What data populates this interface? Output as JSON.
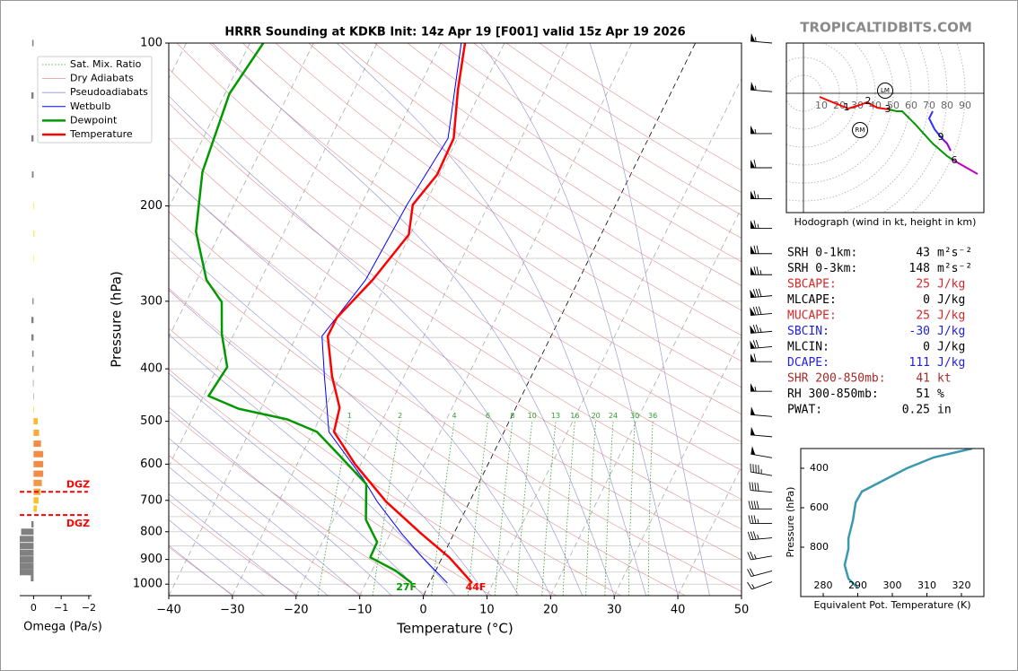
{
  "header": {
    "watermark": "TROPICALTIDBITS.COM"
  },
  "chart_data": [
    {
      "type": "skewt",
      "title": "HRRR Sounding at KDKB Init: 14z Apr 19 [F001] valid 15z Apr 19 2026",
      "x_label": "Temperature (°C)",
      "y_label": "Pressure (hPa)",
      "y_scale": "log",
      "xlim": [
        -40,
        50
      ],
      "ylim": [
        1050,
        100
      ],
      "xticks": [
        {
          "value": -40,
          "label": "−40"
        },
        {
          "value": -30,
          "label": "−30"
        },
        {
          "value": -20,
          "label": "−20"
        },
        {
          "value": -10,
          "label": "−10"
        },
        0,
        10,
        20,
        30,
        40,
        50
      ],
      "yticks": [
        100,
        200,
        300,
        400,
        500,
        600,
        700,
        800,
        900,
        1000
      ],
      "yminor": [
        150,
        250,
        350,
        450,
        550,
        650,
        750,
        850,
        950
      ],
      "grid": true,
      "legend": "upper left",
      "background_lines": [
        {
          "name": "Sat. Mix. Ratio",
          "color": "#2ca02c",
          "style": "dotted"
        },
        {
          "name": "Dry Adiabats",
          "color": "#e39090",
          "style": "solid"
        },
        {
          "name": "Pseudoadiabats",
          "color": "#8f8fd0",
          "style": "solid"
        }
      ],
      "mixing_ratios": [
        1,
        2,
        4,
        6,
        8,
        10,
        13,
        16,
        20,
        24,
        30,
        36
      ],
      "series": [
        {
          "name": "Wetbulb",
          "color": "#0000ff",
          "width": 1,
          "pressures": [
            995,
            892,
            808,
            704,
            640,
            523,
            413,
            348,
            274,
            199,
            150,
            100
          ],
          "values": [
            2.8,
            -3.1,
            -8.1,
            -14.5,
            -18.4,
            -27.5,
            -32.5,
            -36,
            -33.5,
            -32.8,
            -31.5,
            -36.8
          ]
        },
        {
          "name": "Dewpoint",
          "color": "#009900",
          "width": 2.5,
          "pressures": [
            995,
            944,
            892,
            836,
            760,
            653,
            571,
            523,
            496,
            474,
            449,
            397,
            345,
            301,
            274,
            223,
            173,
            124,
            100
          ],
          "values": [
            -2.8,
            -6.3,
            -11.3,
            -11.4,
            -14.9,
            -17.6,
            -24.7,
            -29.4,
            -35,
            -43.5,
            -49.2,
            -48.5,
            -51.9,
            -54.4,
            -58.5,
            -63.9,
            -67.5,
            -69.3,
            -67.9
          ]
        },
        {
          "name": "Temperature",
          "color": "#ff0000",
          "width": 2.5,
          "pressures": [
            995,
            940,
            892,
            808,
            704,
            600,
            523,
            472,
            413,
            348,
            322,
            274,
            226,
            199,
            175,
            150,
            122,
            100
          ],
          "values": [
            6.7,
            3.8,
            1.1,
            -5,
            -13.1,
            -20.9,
            -26.7,
            -27.7,
            -31.3,
            -35.1,
            -35.1,
            -32.4,
            -30.2,
            -31.9,
            -30.4,
            -30.6,
            -33.7,
            -36.2
          ]
        }
      ],
      "annotations": [
        {
          "text": "27F",
          "color": "#009900"
        },
        {
          "text": "44F",
          "color": "#ff0000"
        }
      ],
      "winds": {
        "pressures": [
          100,
          123,
          147,
          170,
          194,
          220,
          245,
          268,
          293,
          316,
          341,
          364,
          388,
          440,
          490,
          534,
          584,
          630,
          676,
          726,
          772,
          821,
          887,
          945,
          990
        ],
        "speeds": [
          55,
          55,
          55,
          60,
          65,
          65,
          70,
          75,
          80,
          80,
          75,
          70,
          60,
          55,
          50,
          50,
          50,
          45,
          40,
          40,
          35,
          35,
          25,
          20,
          15
        ],
        "directions": [
          275,
          275,
          270,
          270,
          270,
          270,
          270,
          270,
          265,
          265,
          265,
          265,
          270,
          270,
          275,
          275,
          280,
          280,
          275,
          270,
          270,
          265,
          260,
          255,
          250
        ]
      }
    },
    {
      "type": "bar",
      "orientation": "horizontal",
      "x_label": "Omega (Pa/s)",
      "xlim": [
        0.5,
        -2.1
      ],
      "xticks": [
        0,
        {
          "value": -1,
          "label": "−1"
        },
        {
          "value": -2,
          "label": "−2"
        }
      ],
      "pressures": [
        100,
        125,
        150,
        175,
        200,
        225,
        250,
        300,
        325,
        350,
        375,
        400,
        425,
        450,
        475,
        500,
        525,
        550,
        575,
        600,
        625,
        650,
        675,
        700,
        725,
        775,
        800,
        825,
        850,
        875,
        900,
        925,
        950,
        975
      ],
      "values": [
        0.05,
        0.08,
        0.08,
        0.06,
        -0.02,
        -0.03,
        -0.01,
        0.04,
        0.08,
        0.08,
        0.05,
        0.04,
        0.02,
        0.01,
        -0.02,
        -0.15,
        -0.2,
        -0.27,
        -0.35,
        -0.35,
        -0.35,
        -0.3,
        -0.25,
        -0.18,
        -0.12,
        0.08,
        0.45,
        0.5,
        0.5,
        0.5,
        0.5,
        0.5,
        0.5,
        0.1
      ],
      "colors": [
        "#808080",
        "#808080",
        "#808080",
        "#808080",
        "#ffe000",
        "#ffe000",
        "#ffe000",
        "#808080",
        "#808080",
        "#808080",
        "#808080",
        "#808080",
        "#808080",
        "#808080",
        "#ffe000",
        "#fbb82c",
        "#f9a83a",
        "#f08c46",
        "#f08c46",
        "#f08c46",
        "#f08c46",
        "#f29746",
        "#f7a840",
        "#fbbf2a",
        "#fcc725",
        "#808080",
        "#808080",
        "#808080",
        "#808080",
        "#808080",
        "#808080",
        "#808080",
        "#808080",
        "#808080"
      ],
      "dgz": {
        "label": "DGZ",
        "color": "#ff0000",
        "pressures": [
          675,
          745
        ]
      }
    },
    {
      "type": "hodograph",
      "caption": "Hodograph (wind in kt, height in km)",
      "ulim": [
        -9.5,
        100.5
      ],
      "vlim": [
        -66.5,
        28
      ],
      "rings": [
        10,
        20,
        30,
        40,
        50,
        60,
        70,
        80,
        90
      ],
      "segments": [
        {
          "color": "#ff0000",
          "u": [
            9,
            17.5,
            25,
            31.5,
            35.5,
            41,
            47.5
          ],
          "v": [
            -2,
            -5.5,
            -8.5,
            -6.5,
            -5,
            -8,
            -9
          ]
        },
        {
          "color": "#009900",
          "u": [
            47.5,
            52,
            55,
            62,
            72,
            80,
            83
          ],
          "v": [
            -9,
            -10,
            -10,
            -17,
            -28,
            -35,
            -37
          ]
        },
        {
          "color": "#c000c0",
          "u": [
            83,
            90,
            97
          ],
          "v": [
            -37,
            -41,
            -45
          ]
        },
        {
          "color": "#3030ff",
          "u": [
            72,
            70,
            73,
            77
          ],
          "v": [
            -10,
            -14,
            -20,
            -25
          ]
        },
        {
          "color": "#9400d3",
          "u": [
            77,
            80,
            82
          ],
          "v": [
            -25,
            -28,
            -32
          ]
        }
      ],
      "heights": {
        "labels": [
          1,
          2,
          3,
          6,
          9
        ],
        "u": [
          24,
          36,
          47,
          84,
          76.5
        ],
        "v": [
          -8,
          -4.5,
          -9,
          -37.5,
          -24.5
        ]
      },
      "storm_motion": [
        {
          "label": "LM",
          "u": 45.5,
          "v": 1.5
        },
        {
          "label": "RM",
          "u": 31.5,
          "v": -20.5
        }
      ]
    },
    {
      "type": "line",
      "x_label": "Equivalent Pot. Temperature (K)",
      "y_label": "Pressure (hPa)",
      "xlim": [
        273.5,
        326.5
      ],
      "ylim": [
        1050,
        300
      ],
      "xticks": [
        280,
        290,
        300,
        310,
        320
      ],
      "yticks": [
        400,
        600,
        800
      ],
      "series": [
        {
          "color": "#3a98b0",
          "x": [
            323.1,
            312,
            304.2,
            297.7,
            291.2,
            289.4,
            288.6,
            287.3,
            287.3,
            286.2,
            287.3,
            289.9
          ],
          "y": [
            300,
            345,
            400,
            459,
            518,
            573,
            664,
            755,
            809,
            891,
            959,
            1005
          ]
        }
      ]
    }
  ],
  "info_table": {
    "rows": [
      {
        "label": "SRH 0-1km:",
        "value": 43,
        "unit": "m²s⁻²",
        "color": "#000000"
      },
      {
        "label": "SRH 0-3km:",
        "value": 148,
        "unit": "m²s⁻²",
        "color": "#000000"
      },
      {
        "label": "SBCAPE:",
        "value": 25,
        "unit": "J/kg",
        "color": "#d62728"
      },
      {
        "label": "MLCAPE:",
        "value": 0,
        "unit": "J/kg",
        "color": "#000000"
      },
      {
        "label": "MUCAPE:",
        "value": 25,
        "unit": "J/kg",
        "color": "#d62728"
      },
      {
        "label": "SBCIN:",
        "value": -30,
        "unit": "J/kg",
        "color": "#2020e0"
      },
      {
        "label": "MLCIN:",
        "value": 0,
        "unit": "J/kg",
        "color": "#000000"
      },
      {
        "label": "DCAPE:",
        "value": 111,
        "unit": "J/kg",
        "color": "#2020e0"
      },
      {
        "label": "SHR 200-850mb:",
        "value": 41,
        "unit": "kt",
        "color": "#a52a2a"
      },
      {
        "label": "RH 300-850mb:",
        "value": 51,
        "unit": "%",
        "color": "#000000"
      },
      {
        "label": "PWAT:",
        "value": 0.25,
        "unit": "in",
        "color": "#000000"
      }
    ]
  }
}
